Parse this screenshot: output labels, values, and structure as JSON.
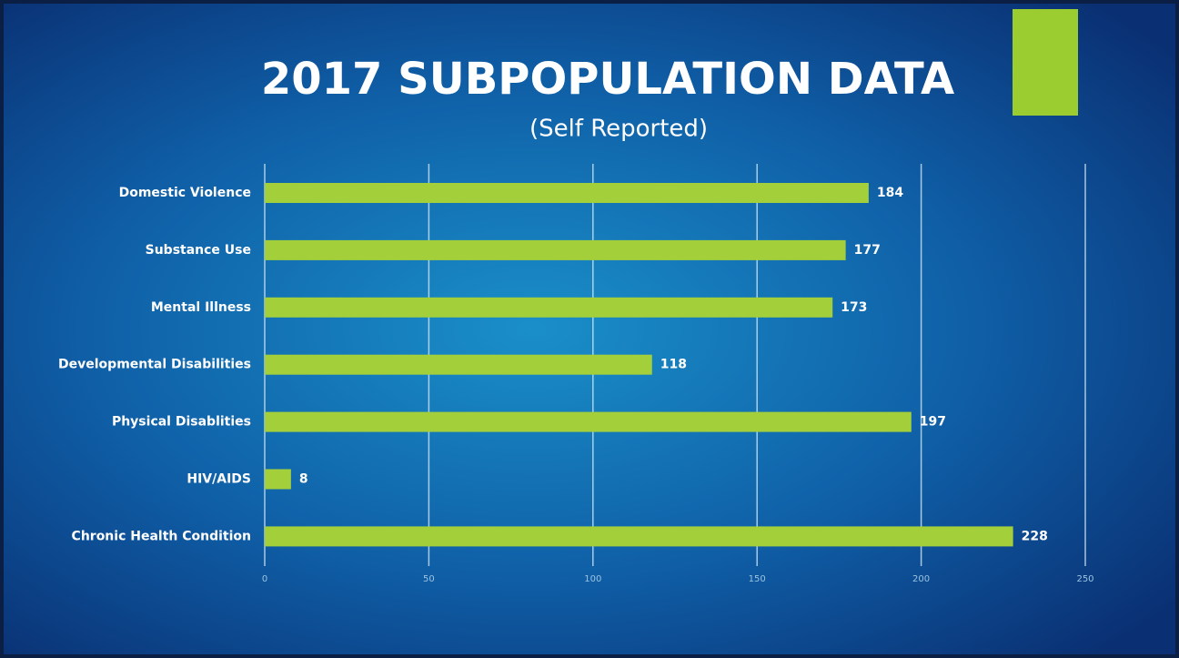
{
  "chart_data": {
    "type": "hbar",
    "title": "2017 SUBPOPULATION DATA",
    "subtitle": "(Self Reported)",
    "categories": [
      "Domestic Violence",
      "Substance Use",
      "Mental Illness",
      "Developmental Disabilities",
      "Physical Disablities",
      "HIV/AIDS",
      "Chronic Health Condition"
    ],
    "values": [
      184,
      177,
      173,
      118,
      197,
      8,
      228
    ],
    "color": "#a3d03a",
    "xlim": [
      0,
      250
    ],
    "xticks": [
      0,
      50,
      100,
      150,
      200,
      250
    ],
    "grid": true
  }
}
